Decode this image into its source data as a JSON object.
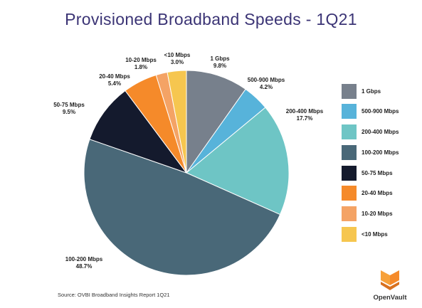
{
  "chart_data": {
    "type": "pie",
    "title": "Provisioned Broadband Speeds - 1Q21",
    "slices": [
      {
        "label": "1 Gbps",
        "value": 9.8,
        "value_label": "9.8%",
        "color": "#77808c"
      },
      {
        "label": "500-900 Mbps",
        "value": 4.2,
        "value_label": "4.2%",
        "color": "#57b3da"
      },
      {
        "label": "200-400 Mbps",
        "value": 17.7,
        "value_label": "17.7%",
        "color": "#6ec5c5"
      },
      {
        "label": "100-200 Mbps",
        "value": 48.7,
        "value_label": "48.7%",
        "color": "#496878"
      },
      {
        "label": "50-75 Mbps",
        "value": 9.5,
        "value_label": "9.5%",
        "color": "#141a2d"
      },
      {
        "label": "20-40 Mbps",
        "value": 5.4,
        "value_label": "5.4%",
        "color": "#f58a2a"
      },
      {
        "label": "10-20 Mbps",
        "value": 1.8,
        "value_label": "1.8%",
        "color": "#f4a365"
      },
      {
        "label": "<10 Mbps",
        "value": 3.0,
        "value_label": "3.0%",
        "color": "#f6c64f"
      }
    ],
    "legend_position": "right",
    "start_angle": "12 o'clock",
    "direction": "clockwise"
  },
  "source": "Source: OVBI Broadband Insights Report 1Q21",
  "logo": {
    "text": "OpenVault",
    "colors": [
      "#f7a13a",
      "#f58a2a",
      "#d9711f"
    ]
  }
}
